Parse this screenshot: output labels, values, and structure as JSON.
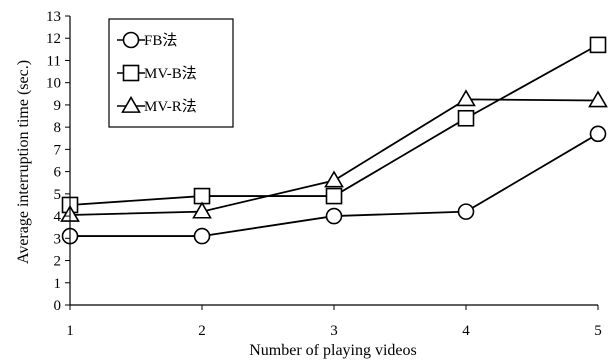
{
  "chart_data": {
    "type": "line",
    "xlabel": "Number of playing videos",
    "ylabel": "Average interruption time (sec.)",
    "x": [
      1,
      2,
      3,
      4,
      5
    ],
    "xlim": [
      1,
      5
    ],
    "ylim": [
      0,
      13
    ],
    "yticks": [
      0,
      1,
      2,
      3,
      4,
      5,
      6,
      7,
      8,
      9,
      10,
      11,
      12,
      13
    ],
    "grid": false,
    "legend_position": "top-left",
    "series": [
      {
        "name": "FB法",
        "marker": "circle",
        "values": [
          3.1,
          3.1,
          4.0,
          4.2,
          7.7
        ]
      },
      {
        "name": "MV-B法",
        "marker": "square",
        "values": [
          4.5,
          4.9,
          4.9,
          8.4,
          11.7
        ]
      },
      {
        "name": "MV-R法",
        "marker": "triangle",
        "values": [
          4.05,
          4.2,
          5.6,
          9.25,
          9.2
        ]
      }
    ]
  }
}
